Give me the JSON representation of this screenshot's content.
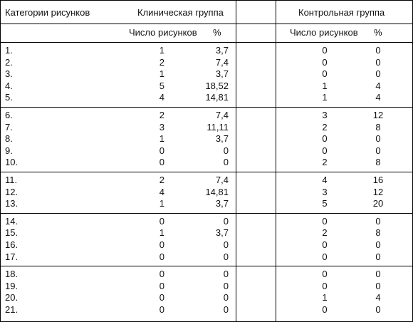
{
  "headers": {
    "category": "Категории рисунков",
    "clinical": "Клиническая группа",
    "control": "Контрольная группа",
    "count": "Число рисунков",
    "percent": "%"
  },
  "groups": [
    {
      "rows": [
        {
          "cat": "1.",
          "clin_n": "1",
          "clin_p": "3,7",
          "ctrl_n": "0",
          "ctrl_p": "0"
        },
        {
          "cat": "2.",
          "clin_n": "2",
          "clin_p": "7,4",
          "ctrl_n": "0",
          "ctrl_p": "0"
        },
        {
          "cat": "3.",
          "clin_n": "1",
          "clin_p": "3,7",
          "ctrl_n": "0",
          "ctrl_p": "0"
        },
        {
          "cat": "4.",
          "clin_n": "5",
          "clin_p": "18,52",
          "ctrl_n": "1",
          "ctrl_p": "4"
        },
        {
          "cat": "5.",
          "clin_n": "4",
          "clin_p": "14,81",
          "ctrl_n": "1",
          "ctrl_p": "4"
        }
      ]
    },
    {
      "rows": [
        {
          "cat": "6.",
          "clin_n": "2",
          "clin_p": "7,4",
          "ctrl_n": "3",
          "ctrl_p": "12"
        },
        {
          "cat": "7.",
          "clin_n": "3",
          "clin_p": "11,11",
          "ctrl_n": "2",
          "ctrl_p": "8"
        },
        {
          "cat": "8.",
          "clin_n": "1",
          "clin_p": "3,7",
          "ctrl_n": "0",
          "ctrl_p": "0"
        },
        {
          "cat": "9.",
          "clin_n": "0",
          "clin_p": "0",
          "ctrl_n": "0",
          "ctrl_p": "0"
        },
        {
          "cat": "10.",
          "clin_n": "0",
          "clin_p": "0",
          "ctrl_n": "2",
          "ctrl_p": "8"
        }
      ]
    },
    {
      "rows": [
        {
          "cat": "11.",
          "clin_n": "2",
          "clin_p": "7,4",
          "ctrl_n": "4",
          "ctrl_p": "16"
        },
        {
          "cat": "12.",
          "clin_n": "4",
          "clin_p": "14,81",
          "ctrl_n": "3",
          "ctrl_p": "12"
        },
        {
          "cat": "13.",
          "clin_n": "1",
          "clin_p": "3,7",
          "ctrl_n": "5",
          "ctrl_p": "20"
        }
      ]
    },
    {
      "rows": [
        {
          "cat": "14.",
          "clin_n": "0",
          "clin_p": "0",
          "ctrl_n": "0",
          "ctrl_p": "0"
        },
        {
          "cat": "15.",
          "clin_n": "1",
          "clin_p": "3,7",
          "ctrl_n": "2",
          "ctrl_p": "8"
        },
        {
          "cat": "16.",
          "clin_n": "0",
          "clin_p": "0",
          "ctrl_n": "0",
          "ctrl_p": "0"
        },
        {
          "cat": "17.",
          "clin_n": "0",
          "clin_p": "0",
          "ctrl_n": "0",
          "ctrl_p": "0"
        }
      ]
    },
    {
      "rows": [
        {
          "cat": "18.",
          "clin_n": "0",
          "clin_p": "0",
          "ctrl_n": "0",
          "ctrl_p": "0"
        },
        {
          "cat": "19.",
          "clin_n": "0",
          "clin_p": "0",
          "ctrl_n": "0",
          "ctrl_p": "0"
        },
        {
          "cat": "20.",
          "clin_n": "0",
          "clin_p": "0",
          "ctrl_n": "1",
          "ctrl_p": "4"
        },
        {
          "cat": "21.",
          "clin_n": "0",
          "clin_p": "0",
          "ctrl_n": "0",
          "ctrl_p": "0"
        }
      ]
    }
  ]
}
